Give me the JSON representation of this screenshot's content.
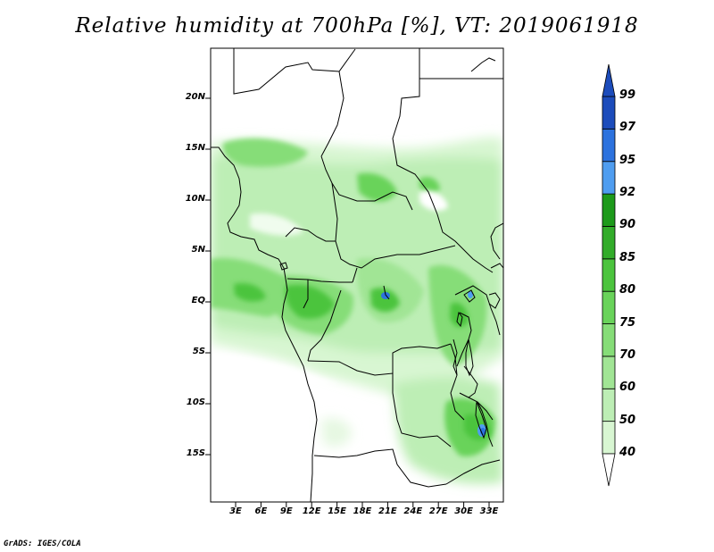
{
  "title": "Relative humidity at 700hPa [%], VT: 2019061918",
  "footer": "GrADS: IGES/COLA",
  "map": {
    "variable": "Relative humidity at 700hPa",
    "units": "%",
    "valid_time": "2019061918",
    "lon_ticks": [
      "3E",
      "6E",
      "9E",
      "12E",
      "15E",
      "18E",
      "21E",
      "24E",
      "27E",
      "30E",
      "33E"
    ],
    "lat_ticks": [
      "20N",
      "15N",
      "10N",
      "5N",
      "EQ",
      "5S",
      "10S",
      "15S"
    ]
  },
  "colorbar": {
    "levels": [
      "40",
      "50",
      "60",
      "70",
      "75",
      "80",
      "85",
      "90",
      "92",
      "95",
      "97",
      "99"
    ],
    "colors": [
      "#f0fcee",
      "#d8f6d2",
      "#bdeeb5",
      "#a1e595",
      "#86dd78",
      "#69d35a",
      "#4cc43e",
      "#32ac2a",
      "#1d9a1b",
      "#4f9df0",
      "#2c72de",
      "#1c4cbb"
    ],
    "low_end": "#ffffff",
    "high_end": "#1c4cbb"
  }
}
